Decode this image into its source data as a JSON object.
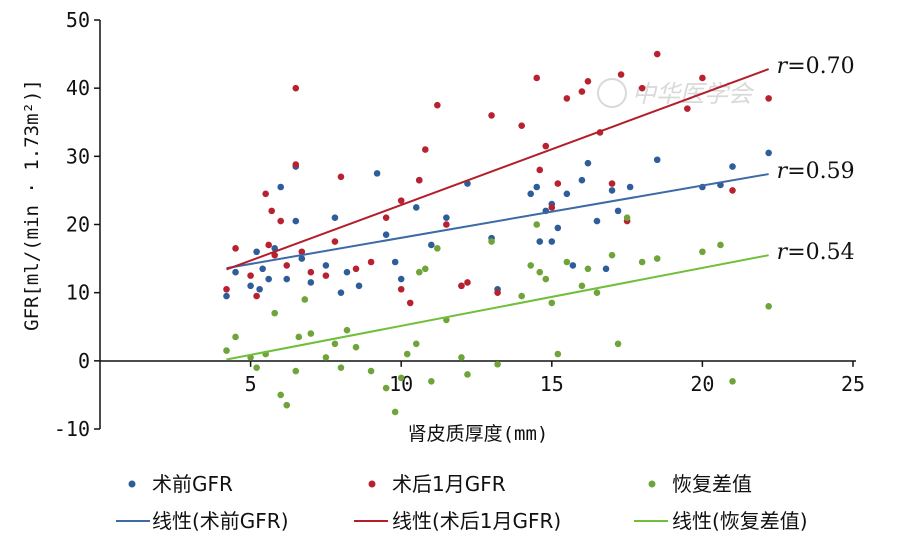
{
  "watermark": "中华医学会",
  "chart_data": {
    "type": "scatter",
    "title": "",
    "xlabel": "肾皮质厚度(mm)",
    "ylabel": "GFR[ml/(min · 1.73m²)]",
    "xlim": [
      0,
      25
    ],
    "ylim": [
      -10,
      50
    ],
    "x_ticks": [
      5,
      10,
      15,
      20,
      25
    ],
    "y_ticks": [
      -10,
      0,
      10,
      20,
      30,
      40,
      50
    ],
    "grid": false,
    "legend_position": "bottom",
    "series": [
      {
        "name": "术前GFR",
        "color": "#2f5d9a",
        "points": [
          [
            4.2,
            9.5
          ],
          [
            4.5,
            13
          ],
          [
            5,
            11
          ],
          [
            5.2,
            16
          ],
          [
            5.3,
            10.5
          ],
          [
            5.4,
            13.5
          ],
          [
            5.6,
            12
          ],
          [
            5.8,
            16.5
          ],
          [
            6,
            25.5
          ],
          [
            6.2,
            12
          ],
          [
            6.5,
            28.5
          ],
          [
            6.5,
            20.5
          ],
          [
            6.7,
            15
          ],
          [
            7,
            11.5
          ],
          [
            7.5,
            14
          ],
          [
            7.8,
            21
          ],
          [
            8,
            10
          ],
          [
            8.2,
            13
          ],
          [
            8.6,
            11
          ],
          [
            9.2,
            27.5
          ],
          [
            9.5,
            18.5
          ],
          [
            9.8,
            14.5
          ],
          [
            10,
            12
          ],
          [
            10.5,
            22.5
          ],
          [
            10.6,
            26.5
          ],
          [
            11,
            17
          ],
          [
            11.5,
            21
          ],
          [
            12,
            11
          ],
          [
            12.2,
            26
          ],
          [
            13,
            18
          ],
          [
            13.2,
            10.5
          ],
          [
            14.3,
            24.5
          ],
          [
            14.5,
            25.5
          ],
          [
            14.6,
            17.5
          ],
          [
            14.8,
            22
          ],
          [
            15,
            23
          ],
          [
            15,
            17.5
          ],
          [
            15.2,
            19.5
          ],
          [
            15.5,
            24.5
          ],
          [
            15.7,
            14
          ],
          [
            16,
            26.5
          ],
          [
            16.2,
            29
          ],
          [
            16.5,
            20.5
          ],
          [
            16.8,
            13.5
          ],
          [
            17,
            25
          ],
          [
            17.2,
            22
          ],
          [
            17.6,
            25.5
          ],
          [
            18.5,
            29.5
          ],
          [
            20,
            25.5
          ],
          [
            20.6,
            25.8
          ],
          [
            21,
            28.5
          ],
          [
            22.2,
            30.5
          ]
        ],
        "fit": {
          "x": [
            4.2,
            22.2
          ],
          "y": [
            13.6,
            27.4
          ],
          "label": "线性(术前GFR)",
          "color": "#3b6aa6",
          "r_label": "r=0.59",
          "r_letter": "r",
          "r_value": "=0.59"
        }
      },
      {
        "name": "术后1月GFR",
        "color": "#b82230",
        "points": [
          [
            4.2,
            10.5
          ],
          [
            4.5,
            16.5
          ],
          [
            5,
            12.5
          ],
          [
            5.2,
            9.5
          ],
          [
            5.5,
            24.5
          ],
          [
            5.6,
            17
          ],
          [
            5.7,
            22
          ],
          [
            5.8,
            15.5
          ],
          [
            6,
            20.5
          ],
          [
            6.2,
            14
          ],
          [
            6.5,
            40
          ],
          [
            6.5,
            28.8
          ],
          [
            6.7,
            16
          ],
          [
            7,
            13
          ],
          [
            7.5,
            12.5
          ],
          [
            7.8,
            17.5
          ],
          [
            8,
            27
          ],
          [
            8.5,
            13.5
          ],
          [
            9,
            14.5
          ],
          [
            9.5,
            21
          ],
          [
            10,
            10.5
          ],
          [
            10,
            23.5
          ],
          [
            10.3,
            8.5
          ],
          [
            10.6,
            26.5
          ],
          [
            10.8,
            31
          ],
          [
            11.2,
            37.5
          ],
          [
            11.5,
            20
          ],
          [
            12,
            11
          ],
          [
            12.2,
            11.5
          ],
          [
            13,
            36
          ],
          [
            13.2,
            10
          ],
          [
            14,
            34.5
          ],
          [
            14.5,
            41.5
          ],
          [
            14.6,
            28
          ],
          [
            14.8,
            31.5
          ],
          [
            15,
            22.5
          ],
          [
            15.2,
            26
          ],
          [
            15.5,
            38.5
          ],
          [
            16,
            39.5
          ],
          [
            16.2,
            41
          ],
          [
            16.6,
            33.5
          ],
          [
            17,
            26
          ],
          [
            17.3,
            42
          ],
          [
            17.5,
            20.5
          ],
          [
            18,
            40
          ],
          [
            18.5,
            45
          ],
          [
            19.5,
            37
          ],
          [
            20,
            41.5
          ],
          [
            21,
            25
          ],
          [
            22.2,
            38.5
          ]
        ],
        "fit": {
          "x": [
            4.2,
            22.2
          ],
          "y": [
            13.4,
            42.8
          ],
          "label": "线性(术后1月GFR)",
          "color": "#b31e2a",
          "r_label": "r=0.70",
          "r_letter": "r",
          "r_value": "=0.70"
        }
      },
      {
        "name": "恢复差值",
        "color": "#6fa43a",
        "points": [
          [
            4.2,
            1.5
          ],
          [
            4.5,
            3.5
          ],
          [
            5,
            0.5
          ],
          [
            5.2,
            -1
          ],
          [
            5.5,
            1
          ],
          [
            5.8,
            7
          ],
          [
            6,
            -5
          ],
          [
            6.2,
            -6.5
          ],
          [
            6.5,
            -1.5
          ],
          [
            6.6,
            3.5
          ],
          [
            6.8,
            9
          ],
          [
            7,
            4
          ],
          [
            7.5,
            0.5
          ],
          [
            7.8,
            2.5
          ],
          [
            8,
            -1
          ],
          [
            8.2,
            4.5
          ],
          [
            8.5,
            2
          ],
          [
            9,
            -1.5
          ],
          [
            9.5,
            -4
          ],
          [
            9.8,
            -7.5
          ],
          [
            10,
            -2.5
          ],
          [
            10.2,
            1
          ],
          [
            10.5,
            2.5
          ],
          [
            10.6,
            13
          ],
          [
            10.8,
            13.5
          ],
          [
            11,
            -3
          ],
          [
            11.2,
            16.5
          ],
          [
            11.5,
            6
          ],
          [
            12,
            0.5
          ],
          [
            12.2,
            -2
          ],
          [
            13,
            17.5
          ],
          [
            13.2,
            -0.5
          ],
          [
            14,
            9.5
          ],
          [
            14.3,
            14
          ],
          [
            14.5,
            20
          ],
          [
            14.6,
            13
          ],
          [
            14.8,
            12
          ],
          [
            15,
            8.5
          ],
          [
            15.2,
            1
          ],
          [
            15.5,
            14.5
          ],
          [
            16,
            11
          ],
          [
            16.2,
            13.5
          ],
          [
            16.5,
            10
          ],
          [
            17,
            15.5
          ],
          [
            17.2,
            2.5
          ],
          [
            17.5,
            21
          ],
          [
            18,
            14.5
          ],
          [
            18.5,
            15
          ],
          [
            20,
            16
          ],
          [
            20.6,
            17
          ],
          [
            21,
            -3
          ],
          [
            22.2,
            8
          ]
        ],
        "fit": {
          "x": [
            4.2,
            22.2
          ],
          "y": [
            0.2,
            15.5
          ],
          "label": "线性(恢复差值)",
          "color": "#6fbf3a",
          "r_label": "r=0.54",
          "r_letter": "r",
          "r_value": "=0.54"
        }
      }
    ]
  }
}
